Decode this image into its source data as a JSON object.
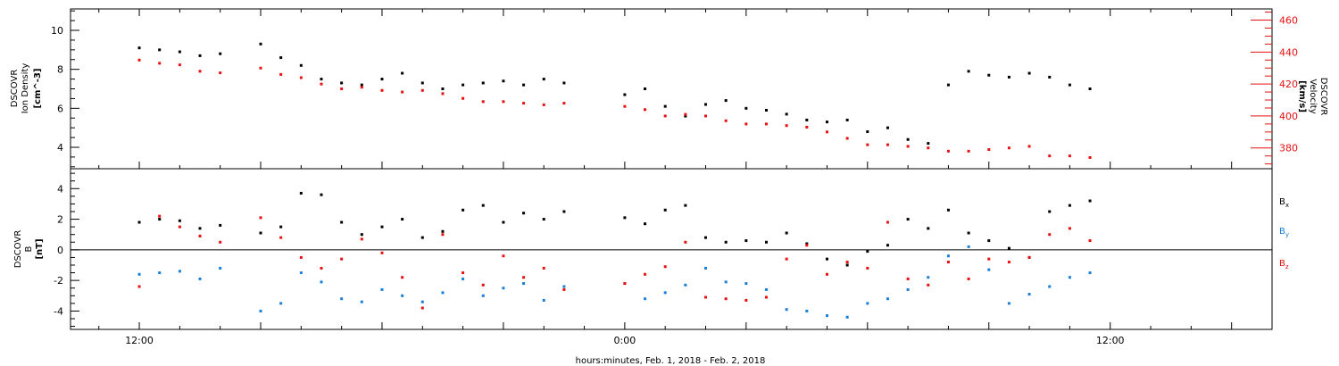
{
  "xlabel": "hours:minutes, Feb.  1, 2018 - Feb.  2, 2018",
  "colors": {
    "black": "#000000",
    "red": "#e81010",
    "blue": "#1a7fd6",
    "frame": "#000000"
  },
  "chart_data": [
    {
      "type": "scatter",
      "panel": "top",
      "x_axis": {
        "unit": "hours since Feb 1 00:00",
        "range": [
          10.3,
          40.0
        ],
        "tick_labels": [
          "12:00",
          "0:00",
          "12:00"
        ],
        "tick_values": [
          12,
          24,
          36
        ]
      },
      "left_axis": {
        "label": [
          "DSCOVR",
          "Ion Density",
          "[cm^-3]"
        ],
        "range": [
          2.9,
          11.1
        ],
        "ticks": [
          4,
          6,
          8,
          10
        ]
      },
      "right_axis": {
        "label": [
          "DSCOVR",
          "Velocity",
          "[km/s]"
        ],
        "range": [
          367,
          467
        ],
        "ticks": [
          380,
          400,
          420,
          440,
          460
        ],
        "color": "#e81010"
      },
      "series": [
        {
          "name": "Ion Density",
          "color": "#000000",
          "axis": "left",
          "x": [
            12.0,
            12.5,
            13.0,
            13.5,
            14.0,
            15.0,
            15.5,
            16.0,
            16.5,
            17.0,
            17.5,
            18.0,
            18.5,
            19.0,
            19.5,
            20.0,
            20.5,
            21.0,
            21.5,
            22.0,
            22.5,
            23.0,
            23.5,
            24.0,
            24.5,
            25.0,
            25.5,
            26.0,
            26.5,
            27.0,
            27.5,
            28.0,
            28.5,
            29.0,
            29.5,
            30.0,
            30.5,
            31.0,
            31.5,
            32.0,
            32.5,
            33.0,
            33.5,
            34.0,
            34.5,
            35.0,
            35.5
          ],
          "values": [
            9.1,
            9.0,
            8.9,
            8.7,
            8.8,
            9.3,
            8.6,
            8.2,
            7.5,
            7.3,
            7.2,
            7.5,
            7.8,
            7.3,
            7.0,
            7.2,
            7.3,
            7.4,
            7.2,
            7.5,
            7.3,
            null,
            null,
            6.7,
            7.0,
            6.1,
            5.6,
            6.2,
            6.4,
            6.0,
            5.9,
            5.7,
            5.4,
            5.3,
            5.4,
            4.8,
            5.0,
            4.4,
            4.2,
            7.2,
            7.9,
            7.7,
            7.6,
            7.8,
            7.6,
            7.2,
            7.0
          ]
        },
        {
          "name": "Velocity",
          "color": "#e81010",
          "axis": "right",
          "x": [
            12.0,
            12.5,
            13.0,
            13.5,
            14.0,
            15.0,
            15.5,
            16.0,
            16.5,
            17.0,
            17.5,
            18.0,
            18.5,
            19.0,
            19.5,
            20.0,
            20.5,
            21.0,
            21.5,
            22.0,
            22.5,
            23.0,
            23.5,
            24.0,
            24.5,
            25.0,
            25.5,
            26.0,
            26.5,
            27.0,
            27.5,
            28.0,
            28.5,
            29.0,
            29.5,
            30.0,
            30.5,
            31.0,
            31.5,
            32.0,
            32.5,
            33.0,
            33.5,
            34.0,
            34.5,
            35.0,
            35.5
          ],
          "values": [
            435,
            433,
            432,
            428,
            427,
            430,
            426,
            424,
            420,
            417,
            418,
            416,
            415,
            416,
            414,
            411,
            409,
            409,
            408,
            407,
            408,
            null,
            null,
            406,
            404,
            400,
            401,
            400,
            397,
            395,
            395,
            394,
            393,
            390,
            386,
            382,
            382,
            381,
            380,
            378,
            378,
            379,
            380,
            381,
            375,
            375,
            374
          ]
        }
      ]
    },
    {
      "type": "scatter",
      "panel": "bottom",
      "x_axis": {
        "unit": "hours since Feb 1 00:00",
        "range": [
          10.3,
          40.0
        ]
      },
      "left_axis": {
        "label": [
          "DSCOVR",
          "B",
          "[nT]"
        ],
        "range": [
          -5.2,
          5.3
        ],
        "ticks": [
          -4,
          -2,
          0,
          2,
          4
        ],
        "zero_line": true
      },
      "legend": {
        "placement": "right",
        "entries": [
          "Bx",
          "By",
          "Bz"
        ]
      },
      "series": [
        {
          "name": "Bx",
          "label_main": "B",
          "label_sub": "x",
          "color": "#000000",
          "x": [
            12.0,
            12.5,
            13.0,
            13.5,
            14.0,
            15.0,
            15.5,
            16.0,
            16.5,
            17.0,
            17.5,
            18.0,
            18.5,
            19.0,
            19.5,
            20.0,
            20.5,
            21.0,
            21.5,
            22.0,
            22.5,
            23.0,
            23.5,
            24.0,
            24.5,
            25.0,
            25.5,
            26.0,
            26.5,
            27.0,
            27.5,
            28.0,
            28.5,
            29.0,
            29.5,
            30.0,
            30.5,
            31.0,
            31.5,
            32.0,
            32.5,
            33.0,
            33.5,
            34.0,
            34.5,
            35.0,
            35.5
          ],
          "values": [
            1.8,
            2.0,
            1.9,
            1.4,
            1.6,
            1.1,
            1.5,
            3.7,
            3.6,
            1.8,
            1.0,
            1.5,
            2.0,
            0.8,
            1.2,
            2.6,
            2.9,
            1.8,
            2.4,
            2.0,
            2.5,
            null,
            null,
            2.1,
            1.7,
            2.6,
            2.9,
            0.8,
            0.5,
            0.6,
            0.5,
            1.1,
            0.4,
            -0.6,
            -1.0,
            -0.1,
            0.3,
            2.0,
            1.4,
            2.6,
            1.1,
            0.6,
            0.1,
            -0.5,
            2.5,
            2.9,
            3.2
          ]
        },
        {
          "name": "By",
          "label_main": "B",
          "label_sub": "y",
          "color": "#1a7fd6",
          "x": [
            12.0,
            12.5,
            13.0,
            13.5,
            14.0,
            15.0,
            15.5,
            16.0,
            16.5,
            17.0,
            17.5,
            18.0,
            18.5,
            19.0,
            19.5,
            20.0,
            20.5,
            21.0,
            21.5,
            22.0,
            22.5,
            23.0,
            23.5,
            24.0,
            24.5,
            25.0,
            25.5,
            26.0,
            26.5,
            27.0,
            27.5,
            28.0,
            28.5,
            29.0,
            29.5,
            30.0,
            30.5,
            31.0,
            31.5,
            32.0,
            32.5,
            33.0,
            33.5,
            34.0,
            34.5,
            35.0,
            35.5
          ],
          "values": [
            -1.6,
            -1.5,
            -1.4,
            -1.9,
            -1.2,
            -4.0,
            -3.5,
            -1.5,
            -2.1,
            -3.2,
            -3.4,
            -2.6,
            -3.0,
            -3.4,
            -2.8,
            -1.9,
            -3.0,
            -2.5,
            -2.2,
            -3.3,
            -2.4,
            null,
            null,
            -2.2,
            -3.2,
            -2.8,
            -2.3,
            -1.2,
            -2.1,
            -2.2,
            -2.6,
            -3.9,
            -4.0,
            -4.3,
            -4.4,
            -3.5,
            -3.2,
            -2.6,
            -1.8,
            -0.4,
            0.2,
            -1.3,
            -3.5,
            -2.9,
            -2.4,
            -1.8,
            -1.5
          ]
        },
        {
          "name": "Bz",
          "label_main": "B",
          "label_sub": "z",
          "color": "#e81010",
          "x": [
            12.0,
            12.5,
            13.0,
            13.5,
            14.0,
            15.0,
            15.5,
            16.0,
            16.5,
            17.0,
            17.5,
            18.0,
            18.5,
            19.0,
            19.5,
            20.0,
            20.5,
            21.0,
            21.5,
            22.0,
            22.5,
            23.0,
            23.5,
            24.0,
            24.5,
            25.0,
            25.5,
            26.0,
            26.5,
            27.0,
            27.5,
            28.0,
            28.5,
            29.0,
            29.5,
            30.0,
            30.5,
            31.0,
            31.5,
            32.0,
            32.5,
            33.0,
            33.5,
            34.0,
            34.5,
            35.0,
            35.5
          ],
          "values": [
            -2.4,
            2.2,
            1.5,
            0.9,
            0.5,
            2.1,
            0.8,
            -0.5,
            -1.2,
            -0.6,
            0.7,
            -0.2,
            -1.8,
            -3.8,
            1.0,
            -1.5,
            -2.3,
            -0.4,
            -1.8,
            -1.2,
            -2.6,
            null,
            null,
            -2.2,
            -1.6,
            -1.1,
            0.5,
            -3.1,
            -3.2,
            -3.3,
            -3.1,
            -0.6,
            0.3,
            -1.6,
            -0.8,
            -1.2,
            1.8,
            -1.9,
            -2.3,
            -0.8,
            -1.9,
            -0.6,
            -0.8,
            -0.5,
            1.0,
            1.4,
            0.6
          ]
        }
      ]
    }
  ]
}
